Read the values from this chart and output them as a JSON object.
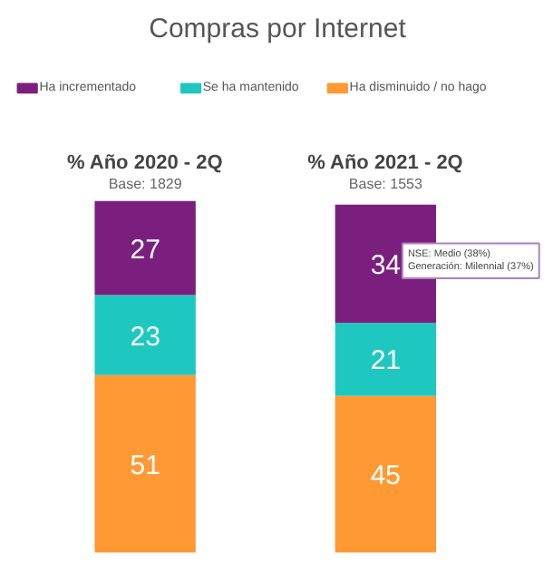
{
  "chart_data": {
    "type": "bar",
    "title": "Compras por Internet",
    "stacked": true,
    "data_labels": true,
    "legend": "top",
    "grid": false,
    "categories": [
      "% Año 2020 - 2Q",
      "% Año 2021 - 2Q"
    ],
    "series": [
      {
        "name": "Ha disminuido / no hago",
        "color": "#ff9933",
        "values": [
          51,
          45
        ]
      },
      {
        "name": "Se ha mantenido",
        "color": "#1ec8c0",
        "values": [
          23,
          21
        ]
      },
      {
        "name": "Ha incrementado",
        "color": "#7b1f7f",
        "values": [
          27,
          34
        ]
      }
    ],
    "annotations": [
      "Base: 1829",
      "Base: 1553",
      "NSE: Medio (38%)\nGeneración: Milennial (37%)"
    ]
  }
}
